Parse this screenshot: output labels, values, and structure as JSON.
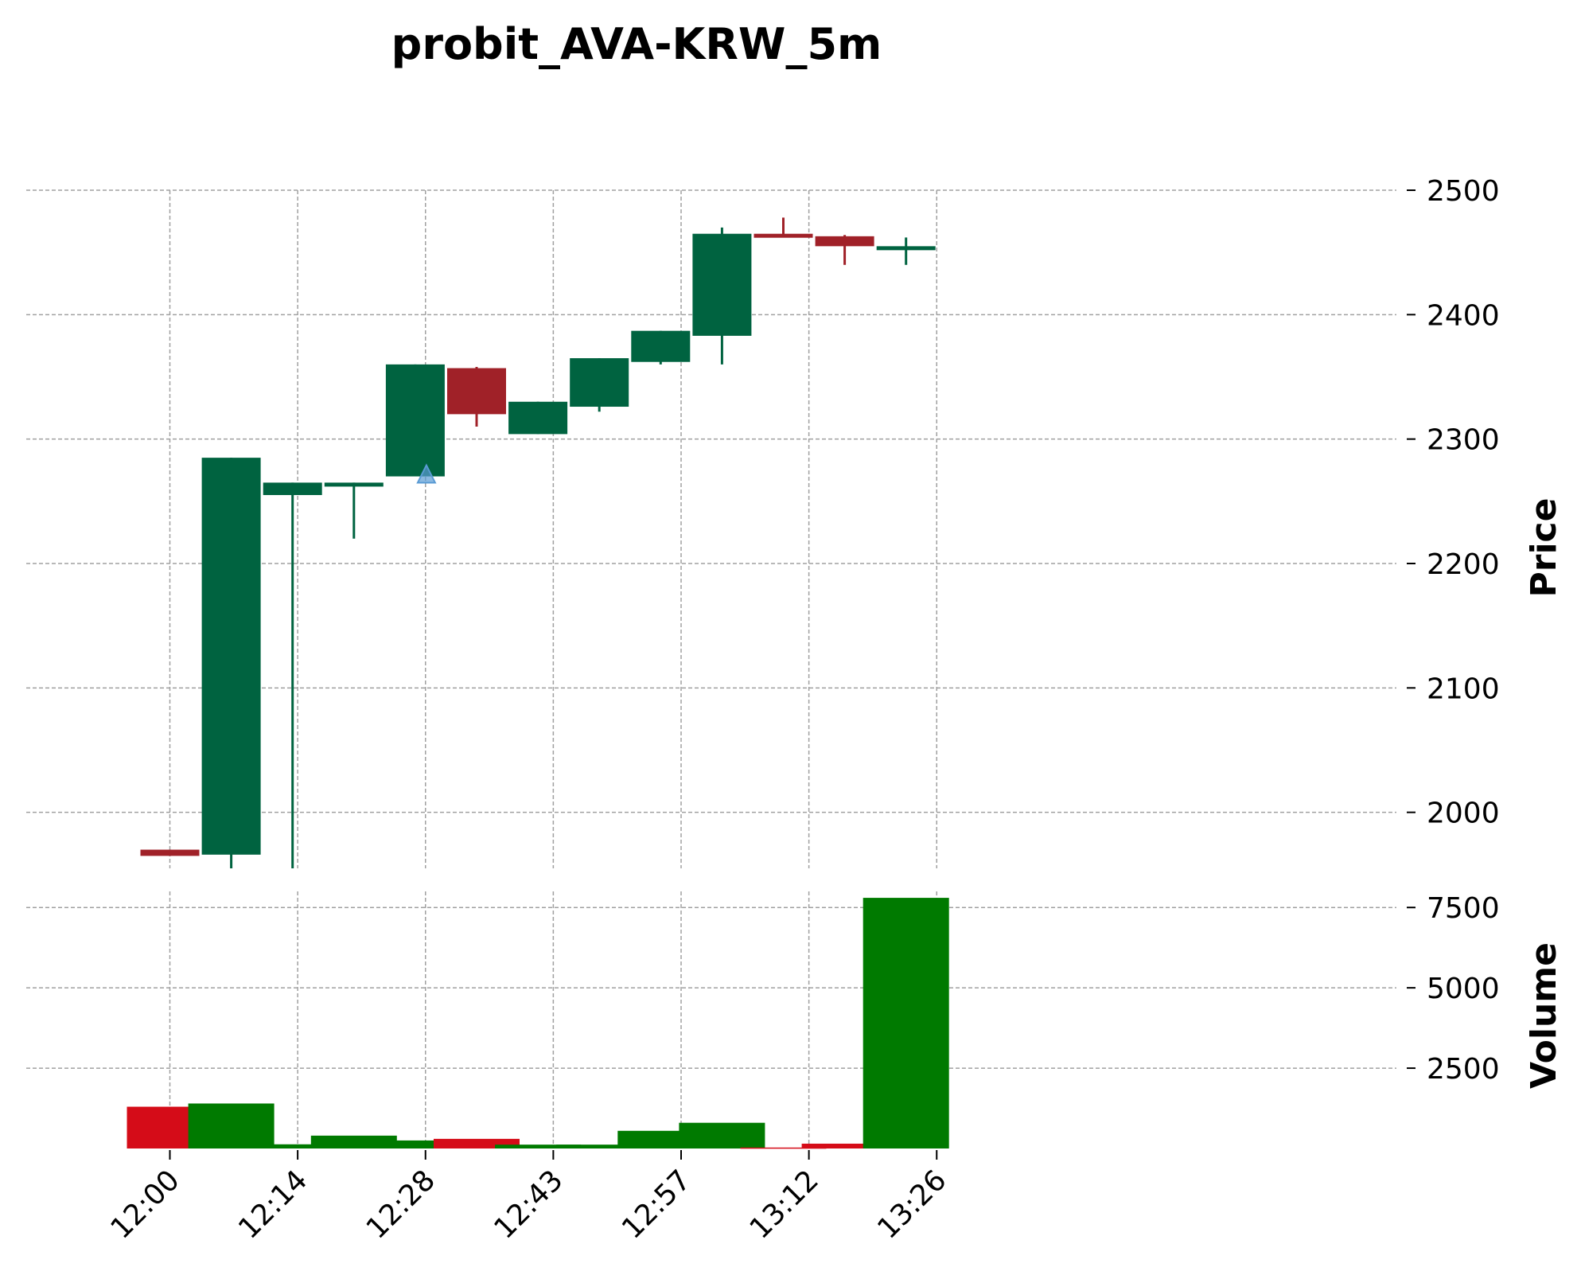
{
  "chart_data": {
    "type": "candlestick",
    "title": "probit_AVA-KRW_5m",
    "price_axis": {
      "label": "Price",
      "ticks": [
        2000,
        2100,
        2200,
        2300,
        2400,
        2500
      ],
      "ylim": [
        1955,
        2500
      ]
    },
    "volume_axis": {
      "label": "Volume",
      "ticks": [
        2500,
        5000,
        7500
      ],
      "ylim": [
        0,
        8000
      ]
    },
    "x_ticks": [
      "12:00",
      "12:14",
      "12:28",
      "12:43",
      "12:57",
      "13:12",
      "13:26"
    ],
    "colors": {
      "up": "#006340",
      "down": "#a02128",
      "volume_up": "#007a00",
      "volume_down": "#d50c18",
      "signal": "#5a9bd4",
      "grid": "#a0a0a0"
    },
    "candles": [
      {
        "open": 1970,
        "high": 1970,
        "low": 1965,
        "close": 1965,
        "volume": 1300
      },
      {
        "open": 1966,
        "high": 2285,
        "low": 1955,
        "close": 2285,
        "volume": 1400
      },
      {
        "open": 2255,
        "high": 2265,
        "low": 1955,
        "close": 2265,
        "volume": 130
      },
      {
        "open": 2262,
        "high": 2265,
        "low": 2220,
        "close": 2265,
        "volume": 400
      },
      {
        "open": 2270,
        "high": 2360,
        "low": 2270,
        "close": 2360,
        "volume": 250
      },
      {
        "open": 2357,
        "high": 2358,
        "low": 2310,
        "close": 2320,
        "volume": 300
      },
      {
        "open": 2304,
        "high": 2330,
        "low": 2304,
        "close": 2330,
        "volume": 120
      },
      {
        "open": 2326,
        "high": 2365,
        "low": 2322,
        "close": 2365,
        "volume": 120
      },
      {
        "open": 2362,
        "high": 2387,
        "low": 2360,
        "close": 2387,
        "volume": 550
      },
      {
        "open": 2383,
        "high": 2470,
        "low": 2360,
        "close": 2465,
        "volume": 800
      },
      {
        "open": 2465,
        "high": 2478,
        "low": 2462,
        "close": 2462,
        "volume": 30
      },
      {
        "open": 2463,
        "high": 2464,
        "low": 2440,
        "close": 2455,
        "volume": 150
      },
      {
        "open": 2455,
        "high": 2462,
        "low": 2440,
        "close": 2455,
        "volume": 7800
      }
    ],
    "signals": [
      {
        "type": "buy",
        "marker": "triangle-up",
        "candle_index": 4,
        "price": 2270
      }
    ]
  }
}
